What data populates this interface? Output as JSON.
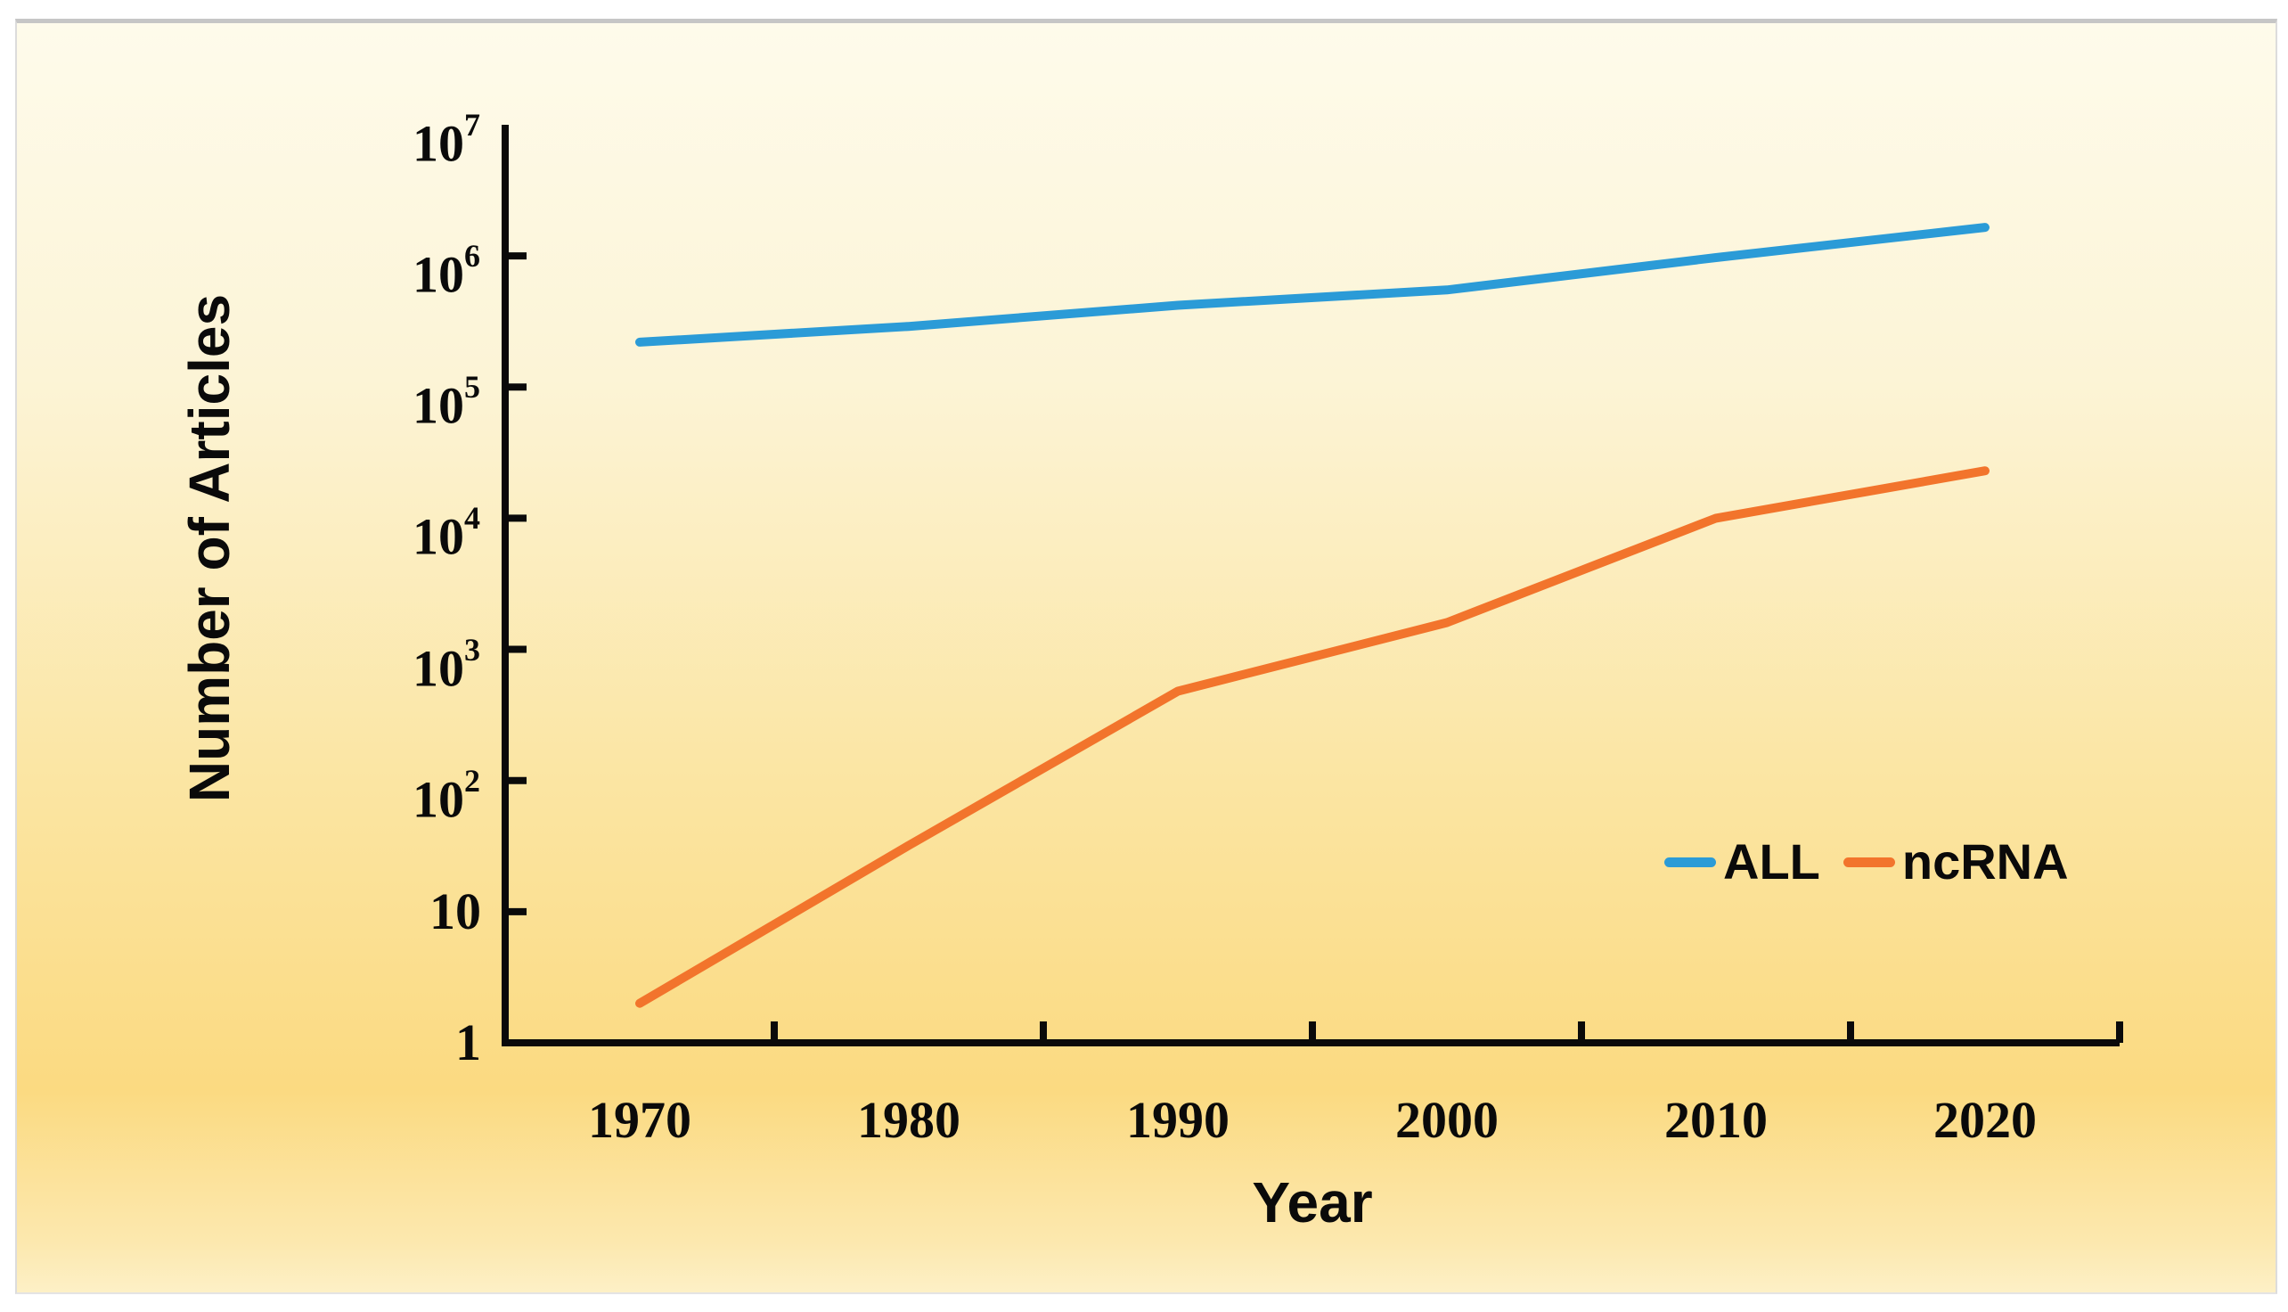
{
  "panel": {
    "border_color": "#c6c6c6",
    "background_gradient": [
      "#FEFBEB",
      "#FCF4D6",
      "#FBE5A2",
      "#FBDA81",
      "#FDF0C6"
    ]
  },
  "chart_data": {
    "type": "line",
    "title": "",
    "xlabel": "Year",
    "ylabel": "Number of Articles",
    "x_categories": [
      "1970",
      "1980",
      "1990",
      "2000",
      "2010",
      "2020"
    ],
    "y_scale": "log10",
    "ylim": [
      1,
      10000000
    ],
    "grid": false,
    "axis_color": "#0a0a0a",
    "legend_position": "right-middle",
    "y_ticks": [
      {
        "base": "10",
        "exp": "7",
        "power": 7
      },
      {
        "base": "10",
        "exp": "6",
        "power": 6
      },
      {
        "base": "10",
        "exp": "5",
        "power": 5
      },
      {
        "base": "10",
        "exp": "4",
        "power": 4
      },
      {
        "base": "10",
        "exp": "3",
        "power": 3
      },
      {
        "base": "10",
        "exp": "2",
        "power": 2
      },
      {
        "base": "10",
        "exp": "",
        "power": 1
      },
      {
        "base": "1",
        "exp": "",
        "power": 0
      }
    ],
    "series": [
      {
        "name": "ALL",
        "color": "#2B9BD7",
        "values": [
          220000,
          290000,
          420000,
          550000,
          970000,
          1650000
        ]
      },
      {
        "name": "ncRNA",
        "color": "#F2742C",
        "values": [
          2,
          32,
          480,
          1600,
          10000,
          23000
        ]
      }
    ]
  }
}
